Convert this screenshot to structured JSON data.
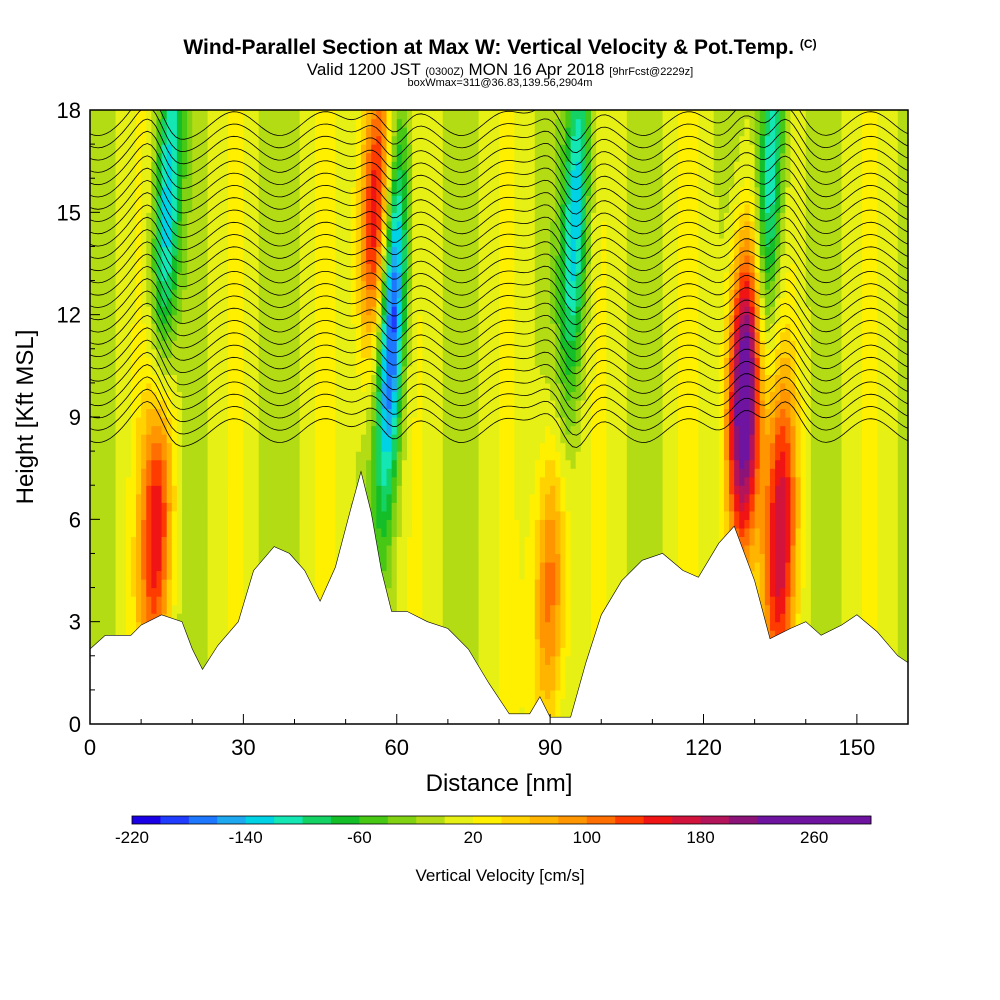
{
  "header": {
    "title": "Wind-Parallel Section at Max W: Vertical Velocity & Pot.Temp.",
    "title_mark": "(C)",
    "valid_prefix": "Valid 1200 JST",
    "valid_zulu": "(0300Z)",
    "valid_date": "MON 16 Apr 2018",
    "forecast": "[9hrFcst@2229z]",
    "box_info": "boxWmax=311@36.83,139.56,2904m"
  },
  "colors": {
    "scale": [
      "#1a00e6",
      "#1f3cff",
      "#1e78ff",
      "#1ea8f0",
      "#00d2e6",
      "#14e6b4",
      "#14d264",
      "#14be28",
      "#46c814",
      "#82d214",
      "#b4dc14",
      "#e6f014",
      "#fff000",
      "#ffd200",
      "#ffb400",
      "#ff9600",
      "#ff6e00",
      "#ff3c00",
      "#f01414",
      "#d2143c",
      "#b4145a",
      "#8c1478",
      "#6e14a0"
    ],
    "terrain": "#ffffff",
    "contour": "#000000"
  },
  "chart_data": {
    "type": "heatmap",
    "xlabel": "Distance [nm]",
    "ylabel": "Height [Kft MSL]",
    "xlim": [
      0,
      160
    ],
    "ylim": [
      0,
      18
    ],
    "xticks": [
      0,
      30,
      60,
      90,
      120,
      150
    ],
    "yticks": [
      0,
      3,
      6,
      9,
      12,
      15,
      18
    ],
    "colorbar": {
      "label": "Vertical Velocity [cm/s]",
      "min": -220,
      "max": 300,
      "step": 20,
      "tick_labels": [
        -220,
        -140,
        -60,
        20,
        100,
        180,
        260
      ]
    },
    "terrain_height_kft": [
      [
        0,
        2.2
      ],
      [
        3,
        2.6
      ],
      [
        8,
        2.6
      ],
      [
        10,
        2.9
      ],
      [
        14,
        3.2
      ],
      [
        18,
        3.0
      ],
      [
        20,
        2.2
      ],
      [
        22,
        1.6
      ],
      [
        25,
        2.3
      ],
      [
        29,
        3.0
      ],
      [
        32,
        4.5
      ],
      [
        36,
        5.2
      ],
      [
        39,
        5.0
      ],
      [
        42,
        4.5
      ],
      [
        45,
        3.6
      ],
      [
        48,
        4.6
      ],
      [
        51,
        6.3
      ],
      [
        53,
        7.4
      ],
      [
        55,
        6.2
      ],
      [
        57,
        4.5
      ],
      [
        59,
        3.3
      ],
      [
        62,
        3.3
      ],
      [
        66,
        3.0
      ],
      [
        70,
        2.8
      ],
      [
        74,
        2.2
      ],
      [
        78,
        1.2
      ],
      [
        82,
        0.3
      ],
      [
        86,
        0.3
      ],
      [
        88,
        0.8
      ],
      [
        90,
        0.2
      ],
      [
        94,
        0.2
      ],
      [
        97,
        1.8
      ],
      [
        100,
        3.2
      ],
      [
        104,
        4.2
      ],
      [
        108,
        4.8
      ],
      [
        112,
        5.0
      ],
      [
        116,
        4.5
      ],
      [
        119,
        4.3
      ],
      [
        123,
        5.3
      ],
      [
        126,
        5.8
      ],
      [
        130,
        4.2
      ],
      [
        133,
        2.5
      ],
      [
        137,
        2.8
      ],
      [
        140,
        3.0
      ],
      [
        143,
        2.6
      ],
      [
        147,
        2.9
      ],
      [
        150,
        3.2
      ],
      [
        154,
        2.7
      ],
      [
        158,
        2.0
      ],
      [
        160,
        1.8
      ]
    ],
    "updraft_cores": [
      {
        "x_nm": 13,
        "height_kft": 6.0,
        "w_cms": 170
      },
      {
        "x_nm": 56,
        "height_kft": 15.0,
        "w_cms": 200
      },
      {
        "x_nm": 90,
        "height_kft": 4.0,
        "w_cms": 140
      },
      {
        "x_nm": 128,
        "height_kft": 9.5,
        "w_cms": 311
      },
      {
        "x_nm": 135,
        "height_kft": 5.5,
        "w_cms": 180
      }
    ],
    "downdraft_cores": [
      {
        "x_nm": 15,
        "height_kft": 15.0,
        "w_cms": -140
      },
      {
        "x_nm": 59,
        "height_kft": 12.0,
        "w_cms": -220
      },
      {
        "x_nm": 95,
        "height_kft": 15.0,
        "w_cms": -140
      },
      {
        "x_nm": 133,
        "height_kft": 16.0,
        "w_cms": -140
      }
    ]
  }
}
